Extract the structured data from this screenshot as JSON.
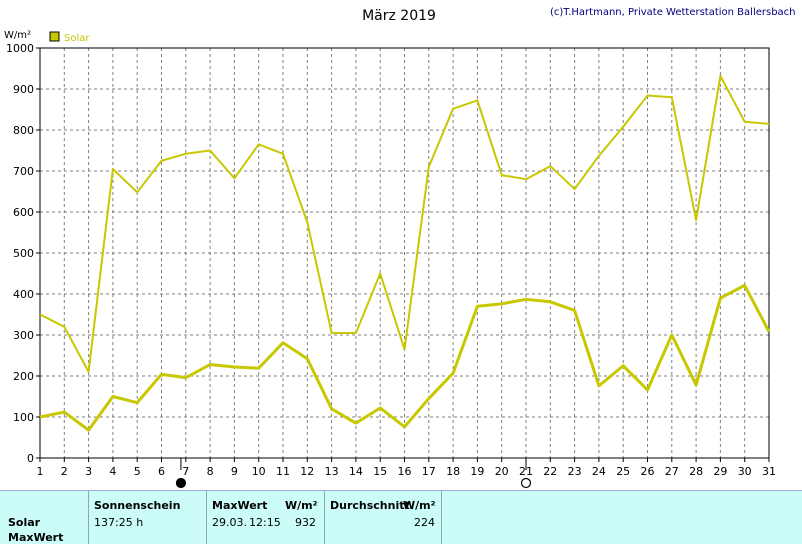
{
  "header": {
    "title": "März 2019",
    "copyright": "(c)T.Hartmann, Private Wetterstation Ballersbach"
  },
  "colors": {
    "series": "#c8c800",
    "grid": "#7f7f7f",
    "stats_bg": "#ccfcf8"
  },
  "chart_data": {
    "type": "line",
    "title": "März 2019",
    "ylabel": "W/m²",
    "xlabel": "",
    "ylim": [
      0,
      1000
    ],
    "yticks": [
      0,
      100,
      200,
      300,
      400,
      500,
      600,
      700,
      800,
      900,
      1000
    ],
    "x": [
      1,
      2,
      3,
      4,
      5,
      6,
      7,
      8,
      9,
      10,
      11,
      12,
      13,
      14,
      15,
      16,
      17,
      18,
      19,
      20,
      21,
      22,
      23,
      24,
      25,
      26,
      27,
      28,
      29,
      30,
      31
    ],
    "x_tick_labels": [
      "1",
      "2",
      "3",
      "4",
      "5",
      "6",
      "7",
      "8",
      "9",
      "10",
      "11",
      "12",
      "13",
      "14",
      "15",
      "16",
      "17",
      "18",
      "19",
      "20",
      "21",
      "22",
      "23",
      "24",
      "25",
      "26",
      "27",
      "28",
      "29",
      "30",
      "31"
    ],
    "grid": true,
    "legend": [
      {
        "label": "Solar",
        "position": "top-left"
      }
    ],
    "moon_phases": [
      {
        "day": 6.8,
        "phase": "new-moon"
      },
      {
        "day": 21.0,
        "phase": "full-moon"
      }
    ],
    "series": [
      {
        "name": "Solar",
        "role": "maximum",
        "values": [
          350,
          320,
          210,
          705,
          648,
          725,
          742,
          750,
          682,
          765,
          742,
          575,
          305,
          305,
          450,
          265,
          710,
          852,
          872,
          690,
          680,
          712,
          656,
          737,
          808,
          884,
          880,
          580,
          932,
          820,
          815
        ]
      },
      {
        "name": "Solar",
        "role": "average",
        "values": [
          100,
          112,
          68,
          150,
          135,
          204,
          196,
          228,
          222,
          219,
          281,
          242,
          120,
          85,
          122,
          76,
          145,
          207,
          370,
          376,
          387,
          381,
          360,
          176,
          225,
          166,
          300,
          178,
          390,
          421,
          308
        ]
      }
    ]
  },
  "stats": {
    "row_label_1": "Solar",
    "row_label_2": "MaxWert",
    "sonnenschein_header": "Sonnenschein",
    "sonnenschein_value": "137:25 h",
    "maxwert_header": "MaxWert",
    "maxwert_unit": "W/m²",
    "maxwert_date": "29.03.",
    "maxwert_time": "12:15",
    "maxwert_value": "932",
    "durchschnitt_header": "Durchschnitt",
    "durchschnitt_unit": "W/m²",
    "durchschnitt_value": "224"
  }
}
